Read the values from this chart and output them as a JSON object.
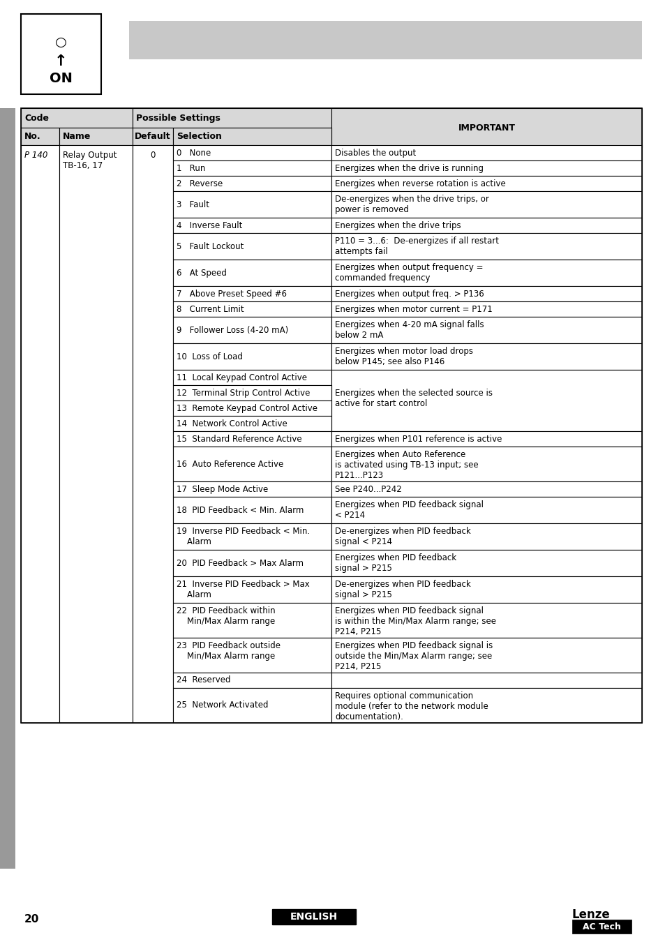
{
  "page_num": "20",
  "header_gray": "#c8c8c8",
  "table_header_gray": "#d0d0d0",
  "table_bg": "#ffffff",
  "border_color": "#000000",
  "col1_header": "Code",
  "col2_header": "Possible Settings",
  "col3_header": "IMPORTANT",
  "col_no": "No.",
  "col_name": "Name",
  "col_default": "Default",
  "col_selection": "Selection",
  "param_no": "P 140",
  "param_name": "Relay Output\nTB-16, 17",
  "param_default": "0",
  "rows": [
    {
      "sel": "0   None",
      "important": "Disables the output"
    },
    {
      "sel": "1   Run",
      "important": "Energizes when the drive is running"
    },
    {
      "sel": "2   Reverse",
      "important": "Energizes when reverse rotation is active"
    },
    {
      "sel": "3   Fault",
      "important": "De-energizes when the drive trips, or\npower is removed"
    },
    {
      "sel": "4   Inverse Fault",
      "important": "Energizes when the drive trips"
    },
    {
      "sel": "5   Fault Lockout",
      "important": "P110 = 3...6:  De-energizes if all restart\nattempts fail"
    },
    {
      "sel": "6   At Speed",
      "important": "Energizes when output frequency =\ncommanded frequency"
    },
    {
      "sel": "7   Above Preset Speed #6",
      "important": "Energizes when output freq. > P136"
    },
    {
      "sel": "8   Current Limit",
      "important": "Energizes when motor current = P171"
    },
    {
      "sel": "9   Follower Loss (4-20 mA)",
      "important": "Energizes when 4-20 mA signal falls\nbelow 2 mA"
    },
    {
      "sel": "10  Loss of Load",
      "important": "Energizes when motor load drops\nbelow P145; see also P146"
    },
    {
      "sel": "11  Local Keypad Control Active",
      "important": ""
    },
    {
      "sel": "12  Terminal Strip Control Active",
      "important": "Energizes when the selected source is\nactive for start control"
    },
    {
      "sel": "13  Remote Keypad Control Active",
      "important": ""
    },
    {
      "sel": "14  Network Control Active",
      "important": ""
    },
    {
      "sel": "15  Standard Reference Active",
      "important": "Energizes when P101 reference is active"
    },
    {
      "sel": "16  Auto Reference Active",
      "important": "Energizes when Auto Reference\nis activated using TB-13 input; see\nP121...P123"
    },
    {
      "sel": "17  Sleep Mode Active",
      "important": "See P240...P242"
    },
    {
      "sel": "18  PID Feedback < Min. Alarm",
      "important": "Energizes when PID feedback signal\n< P214"
    },
    {
      "sel": "19  Inverse PID Feedback < Min.\n    Alarm",
      "important": "De-energizes when PID feedback\nsignal < P214"
    },
    {
      "sel": "20  PID Feedback > Max Alarm",
      "important": "Energizes when PID feedback\nsignal > P215"
    },
    {
      "sel": "21  Inverse PID Feedback > Max\n    Alarm",
      "important": "De-energizes when PID feedback\nsignal > P215"
    },
    {
      "sel": "22  PID Feedback within\n    Min/Max Alarm range",
      "important": "Energizes when PID feedback signal\nis within the Min/Max Alarm range; see\nP214, P215"
    },
    {
      "sel": "23  PID Feedback outside\n    Min/Max Alarm range",
      "important": "Energizes when PID feedback signal is\noutside the Min/Max Alarm range; see\nP214, P215"
    },
    {
      "sel": "24  Reserved",
      "important": ""
    },
    {
      "sel": "25  Network Activated",
      "important": "Requires optional communication\nmodule (refer to the network module\ndocumentation)."
    }
  ],
  "rows_12_13_merged_important": "Energizes when the selected source is\nactive for start control",
  "footer_page": "20",
  "footer_english_bg": "#000000",
  "footer_english_text": "ENGLISH",
  "footer_lenze_text": "Lenze\nAC Tech"
}
